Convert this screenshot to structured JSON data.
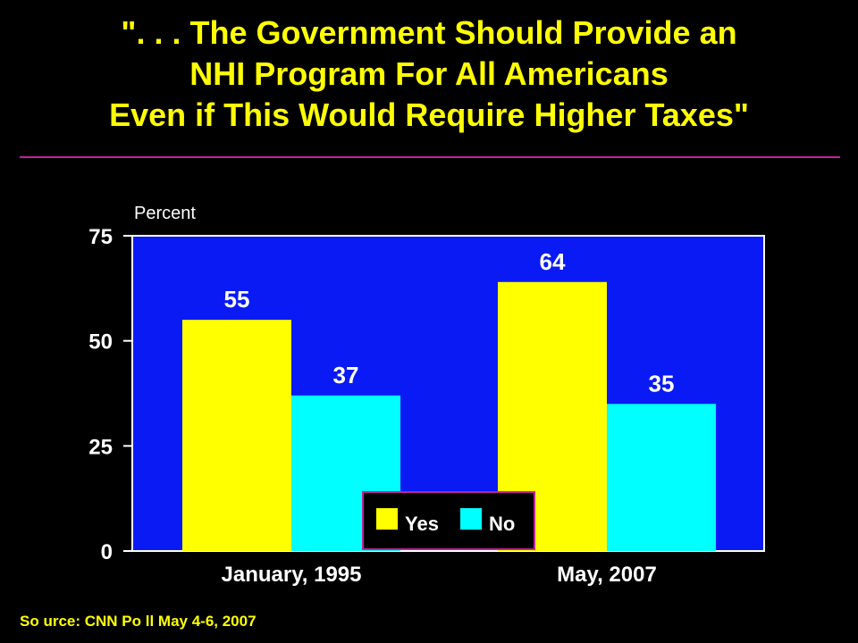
{
  "title_lines": [
    "\". . . The Government Should Provide an",
    "NHI Program For All Americans",
    "Even if This Would Require Higher Taxes\""
  ],
  "source": "So urce: CNN Po ll May 4-6, 2007",
  "colors": {
    "background": "#000000",
    "title": "#FFFF00",
    "rule": "#C0229A",
    "plot_bg": "#0A1AF5",
    "yes": "#FFFF00",
    "no": "#00FFFF",
    "text": "#FFFFFF"
  },
  "chart_data": {
    "type": "bar",
    "title": "\". . . The Government Should Provide an NHI Program For All Americans Even if This Would Require Higher Taxes\"",
    "ylabel": "Percent",
    "xlabel": "",
    "categories": [
      "January, 1995",
      "May, 2007"
    ],
    "series": [
      {
        "name": "Yes",
        "values": [
          55,
          64
        ],
        "color": "#FFFF00"
      },
      {
        "name": "No",
        "values": [
          37,
          35
        ],
        "color": "#00FFFF"
      }
    ],
    "ylim": [
      0,
      75
    ],
    "yticks": [
      "0",
      "25",
      "50",
      "75"
    ],
    "data_labels": [
      [
        "55",
        "64"
      ],
      [
        "37",
        "35"
      ]
    ],
    "grid": false,
    "legend_position": "bottom-center"
  }
}
